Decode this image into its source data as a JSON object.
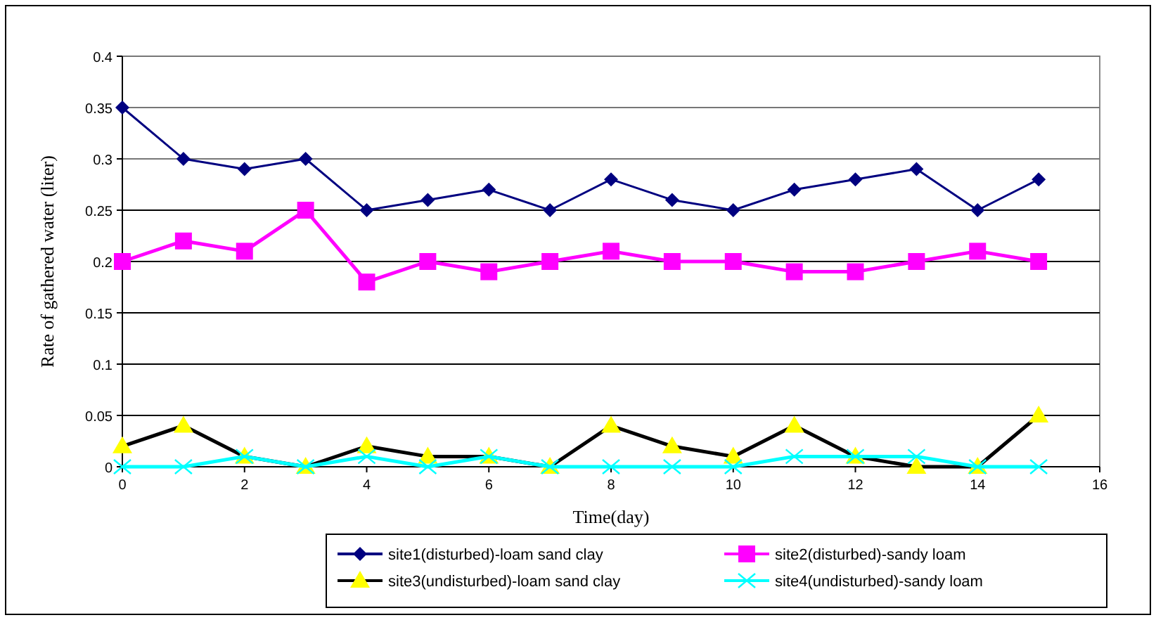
{
  "chart_data": {
    "type": "line",
    "xlabel": "Time(day)",
    "ylabel": "Rate of gathered water (liter)",
    "x": [
      0,
      1,
      2,
      3,
      4,
      5,
      6,
      7,
      8,
      9,
      10,
      11,
      12,
      13,
      14,
      15
    ],
    "series": [
      {
        "name": "site1(disturbed)-loam sand clay",
        "color": "#000080",
        "marker": "diamond",
        "values": [
          0.35,
          0.3,
          0.29,
          0.3,
          0.25,
          0.26,
          0.27,
          0.25,
          0.28,
          0.26,
          0.25,
          0.27,
          0.28,
          0.29,
          0.25,
          0.28
        ]
      },
      {
        "name": "site2(disturbed)-sandy loam",
        "color": "#ff00ff",
        "marker": "square",
        "values": [
          0.2,
          0.22,
          0.21,
          0.25,
          0.18,
          0.2,
          0.19,
          0.2,
          0.21,
          0.2,
          0.2,
          0.19,
          0.19,
          0.2,
          0.21,
          0.2
        ]
      },
      {
        "name": "site3(undisturbed)-loam sand clay",
        "color": "#000000",
        "marker": "triangle",
        "values": [
          0.02,
          0.04,
          0.01,
          0,
          0.02,
          0.01,
          0.01,
          0,
          0.04,
          0.02,
          0.01,
          0.04,
          0.01,
          0,
          0,
          0.05
        ]
      },
      {
        "name": "site4(undisturbed)-sandy loam",
        "color": "#00ffff",
        "marker": "cross",
        "values": [
          0,
          0,
          0.01,
          0,
          0.01,
          0,
          0.01,
          0,
          0,
          0,
          0,
          0.01,
          0.01,
          0.01,
          0,
          0
        ]
      }
    ],
    "xlim": [
      0,
      16
    ],
    "xticks": [
      0,
      2,
      4,
      6,
      8,
      10,
      12,
      14,
      16
    ],
    "ylim": [
      0,
      0.4
    ],
    "yticks": [
      0,
      0.05,
      0.1,
      0.15,
      0.2,
      0.25,
      0.3,
      0.35,
      0.4
    ],
    "grid": "y",
    "legend": "bottom"
  }
}
